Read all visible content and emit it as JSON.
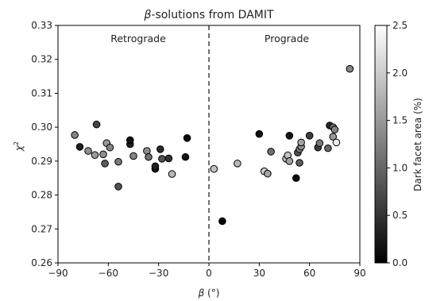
{
  "chart_data": {
    "type": "scatter",
    "title_symbol": "β",
    "title_rest": "-solutions from DAMIT",
    "xlabel_symbol": "β",
    "xlabel_rest": " (°)",
    "ylabel": "χ",
    "ylabel_sup": "2",
    "xlim": [
      -90,
      90
    ],
    "ylim": [
      0.26,
      0.33
    ],
    "xticks": [
      -90,
      -60,
      -30,
      0,
      30,
      60,
      90
    ],
    "xtick_labels": [
      "−90",
      "−60",
      "−30",
      "0",
      "30",
      "60",
      "90"
    ],
    "yticks": [
      0.26,
      0.27,
      0.28,
      0.29,
      0.3,
      0.31,
      0.32,
      0.33
    ],
    "ytick_labels": [
      "0.26",
      "0.27",
      "0.28",
      "0.29",
      "0.30",
      "0.31",
      "0.32",
      "0.33"
    ],
    "divider_x": 0,
    "annotations": {
      "left": "Retrograde",
      "right": "Prograde"
    },
    "colorbar": {
      "label": "Dark facet area (%)",
      "range": [
        0.0,
        2.5
      ],
      "ticks": [
        0.0,
        0.5,
        1.0,
        1.5,
        2.0,
        2.5
      ],
      "tick_labels": [
        "0.0",
        "0.5",
        "1.0",
        "1.5",
        "2.0",
        "2.5"
      ],
      "colormap": "gray"
    },
    "points": [
      {
        "x": -80,
        "y": 0.2977,
        "c": 1.3
      },
      {
        "x": -77,
        "y": 0.2942,
        "c": 0.3
      },
      {
        "x": -72,
        "y": 0.293,
        "c": 1.4
      },
      {
        "x": -68,
        "y": 0.2918,
        "c": 1.5
      },
      {
        "x": -67,
        "y": 0.3008,
        "c": 0.7
      },
      {
        "x": -63,
        "y": 0.292,
        "c": 1.4
      },
      {
        "x": -62,
        "y": 0.2893,
        "c": 0.9
      },
      {
        "x": -61,
        "y": 0.2953,
        "c": 1.5
      },
      {
        "x": -59,
        "y": 0.294,
        "c": 1.3
      },
      {
        "x": -54,
        "y": 0.2898,
        "c": 1.2
      },
      {
        "x": -54,
        "y": 0.2825,
        "c": 0.8
      },
      {
        "x": -47,
        "y": 0.295,
        "c": 0.3
      },
      {
        "x": -47,
        "y": 0.2962,
        "c": 0.2
      },
      {
        "x": -45,
        "y": 0.2915,
        "c": 1.3
      },
      {
        "x": -37,
        "y": 0.293,
        "c": 1.4
      },
      {
        "x": -36,
        "y": 0.2912,
        "c": 1.1
      },
      {
        "x": -32,
        "y": 0.2877,
        "c": 0.2
      },
      {
        "x": -32,
        "y": 0.2885,
        "c": 0.3
      },
      {
        "x": -29,
        "y": 0.2935,
        "c": 0.4
      },
      {
        "x": -28,
        "y": 0.2907,
        "c": 0.8
      },
      {
        "x": -24,
        "y": 0.2908,
        "c": 0.5
      },
      {
        "x": -22,
        "y": 0.2862,
        "c": 1.8
      },
      {
        "x": -13,
        "y": 0.2968,
        "c": 0.1
      },
      {
        "x": -14,
        "y": 0.2912,
        "c": 0.2
      },
      {
        "x": 3,
        "y": 0.2877,
        "c": 1.9
      },
      {
        "x": 8,
        "y": 0.2723,
        "c": 0.05
      },
      {
        "x": 17,
        "y": 0.2893,
        "c": 1.8
      },
      {
        "x": 30,
        "y": 0.298,
        "c": 0.15
      },
      {
        "x": 33,
        "y": 0.287,
        "c": 2.0
      },
      {
        "x": 35,
        "y": 0.2863,
        "c": 1.6
      },
      {
        "x": 37,
        "y": 0.2928,
        "c": 1.1
      },
      {
        "x": 46,
        "y": 0.2907,
        "c": 1.8
      },
      {
        "x": 47,
        "y": 0.2917,
        "c": 1.9
      },
      {
        "x": 48,
        "y": 0.2975,
        "c": 0.2
      },
      {
        "x": 48,
        "y": 0.29,
        "c": 1.6
      },
      {
        "x": 52,
        "y": 0.285,
        "c": 0.1
      },
      {
        "x": 53,
        "y": 0.2925,
        "c": 0.8
      },
      {
        "x": 54,
        "y": 0.2935,
        "c": 1.2
      },
      {
        "x": 54,
        "y": 0.2895,
        "c": 0.9
      },
      {
        "x": 55,
        "y": 0.2943,
        "c": 1.4
      },
      {
        "x": 55,
        "y": 0.2955,
        "c": 1.6
      },
      {
        "x": 60,
        "y": 0.2975,
        "c": 0.6
      },
      {
        "x": 65,
        "y": 0.294,
        "c": 0.6
      },
      {
        "x": 66,
        "y": 0.2953,
        "c": 1.2
      },
      {
        "x": 71,
        "y": 0.2938,
        "c": 1.0
      },
      {
        "x": 72,
        "y": 0.3005,
        "c": 0.4
      },
      {
        "x": 74,
        "y": 0.2972,
        "c": 1.5
      },
      {
        "x": 74,
        "y": 0.3,
        "c": 1.1
      },
      {
        "x": 75,
        "y": 0.2993,
        "c": 1.3
      },
      {
        "x": 76,
        "y": 0.2955,
        "c": 2.3
      },
      {
        "x": 84,
        "y": 0.3172,
        "c": 1.3
      }
    ]
  }
}
